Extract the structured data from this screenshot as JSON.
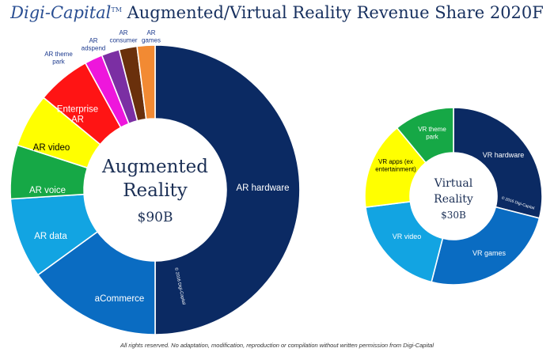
{
  "title": {
    "brand": "Digi-Capital",
    "trademark": "TM",
    "text": "Augmented/Virtual Reality Revenue Share 2020F"
  },
  "footer": "All rights reserved. No adaptation, modification, reproduction or compilation without written permission from Digi-Capital",
  "chart_data": [
    {
      "type": "pie",
      "center_label": [
        "Augmented",
        "Reality"
      ],
      "total_label": "$90B",
      "copyright": "© 2016 Digi-Capital",
      "slices": [
        {
          "label": "AR hardware",
          "value": 50,
          "color": "#0b2a63"
        },
        {
          "label": "aCommerce",
          "value": 15,
          "color": "#0a6cc2"
        },
        {
          "label": "AR data",
          "value": 9,
          "color": "#12a4e2"
        },
        {
          "label": "AR voice",
          "value": 6,
          "color": "#16a846"
        },
        {
          "label": "AR video",
          "value": 6,
          "color": "#ffff00"
        },
        {
          "label": "Enterprise AR",
          "value": 6,
          "color": "#ff1414"
        },
        {
          "label": "AR theme park",
          "value": 2,
          "color": "#ee16dc"
        },
        {
          "label": "AR adspend",
          "value": 2,
          "color": "#7b2fa3"
        },
        {
          "label": "AR consumer",
          "value": 2,
          "color": "#6a300c"
        },
        {
          "label": "AR games",
          "value": 2,
          "color": "#f28a33"
        }
      ]
    },
    {
      "type": "pie",
      "center_label": [
        "Virtual",
        "Reality"
      ],
      "total_label": "$30B",
      "copyright": "© 2016 Digi-Capital",
      "slices": [
        {
          "label": "VR hardware",
          "value": 29,
          "color": "#0b2a63"
        },
        {
          "label": "VR games",
          "value": 25,
          "color": "#0a6cc2"
        },
        {
          "label": "VR video",
          "value": 19,
          "color": "#12a4e2"
        },
        {
          "label": "VR apps (ex entertainment)",
          "value": 16,
          "color": "#ffff00"
        },
        {
          "label": "VR theme park",
          "value": 11,
          "color": "#16a846"
        }
      ]
    }
  ]
}
